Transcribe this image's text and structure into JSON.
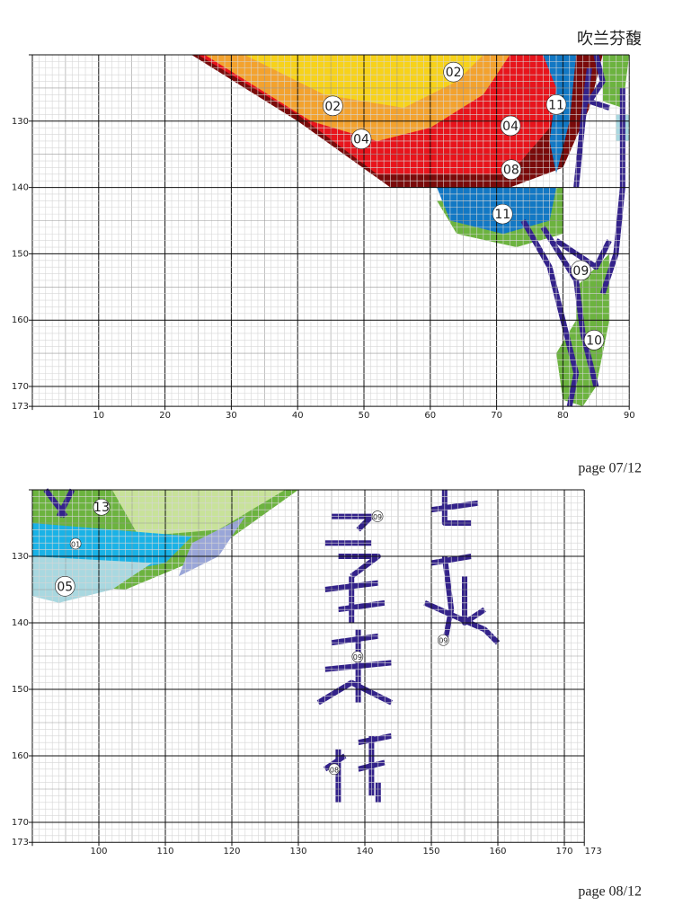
{
  "header": {
    "title": "吹兰芬馥"
  },
  "pages": [
    {
      "label": "page 07/12",
      "x_ticks": [
        10,
        20,
        30,
        40,
        50,
        60,
        70,
        80,
        90
      ],
      "y_ticks": [
        130,
        140,
        150,
        160,
        170,
        173
      ],
      "symbols": [
        "02",
        "02",
        "04",
        "04",
        "11",
        "08",
        "11",
        "09",
        "10"
      ]
    },
    {
      "label": "page 08/12",
      "x_ticks": [
        100,
        110,
        120,
        130,
        140,
        150,
        160,
        170,
        173
      ],
      "y_ticks": [
        130,
        140,
        150,
        160,
        170,
        173
      ],
      "symbols": [
        "13",
        "01",
        "05",
        "09",
        "09",
        "09",
        "08"
      ]
    }
  ]
}
